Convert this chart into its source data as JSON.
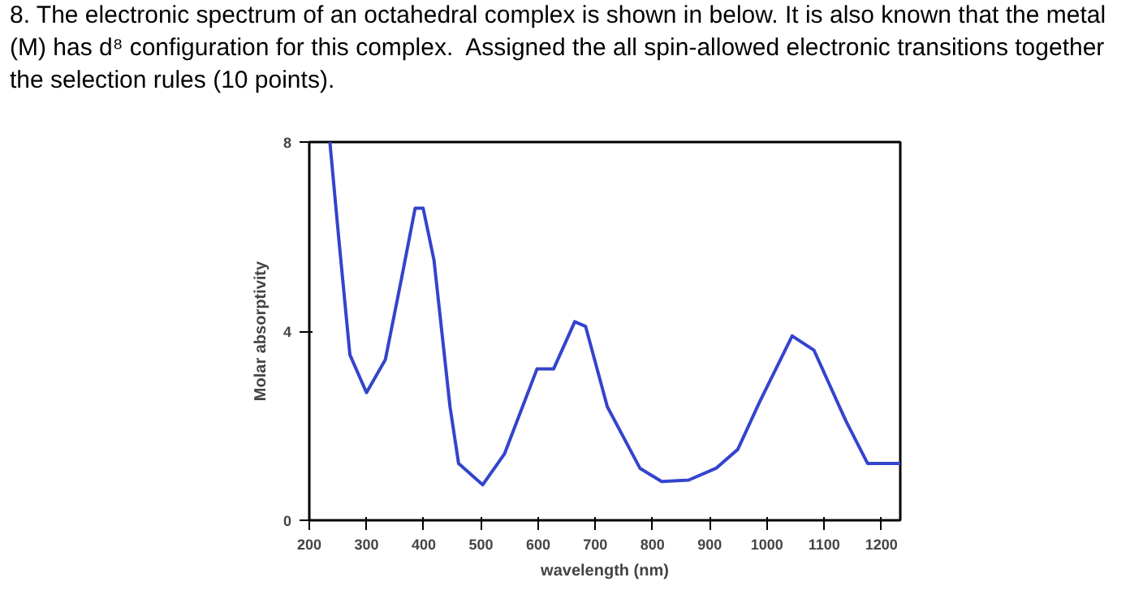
{
  "chart_data": {
    "type": "line",
    "title": "8. The electronic spectrum of an octahedral complex is shown in below. It is also known that the metal (M) has d⁸ configuration for this complex.  Assigned the all spin-allowed electronic transitions together the selection rules (10 points).",
    "xlabel": "wavelength (nm)",
    "ylabel": "Molar absorptivity",
    "xlim": [
      200,
      1233
    ],
    "ylim": [
      0,
      8
    ],
    "xticks": [
      200,
      300,
      400,
      500,
      600,
      700,
      800,
      900,
      1000,
      1100,
      1200
    ],
    "yticks": [
      0,
      4,
      8
    ],
    "grid": false,
    "marker": "none",
    "line_style": "solid",
    "series": [
      {
        "color": "#3344cc",
        "x": [
          236,
          252,
          271,
          300,
          333,
          361,
          385,
          399,
          418,
          446,
          461,
          503,
          541,
          598,
          627,
          664,
          683,
          721,
          778,
          816,
          863,
          911,
          949,
          987,
          1044,
          1082,
          1138,
          1176,
          1233
        ],
        "values": [
          8,
          5.9,
          3.5,
          2.7,
          3.4,
          5.1,
          6.6,
          6.6,
          5.5,
          2.4,
          1.2,
          0.75,
          1.4,
          3.2,
          3.2,
          4.2,
          4.1,
          2.4,
          1.1,
          0.82,
          0.85,
          1.1,
          1.5,
          2.5,
          3.9,
          3.6,
          2.1,
          1.2,
          1.2
        ]
      }
    ]
  }
}
